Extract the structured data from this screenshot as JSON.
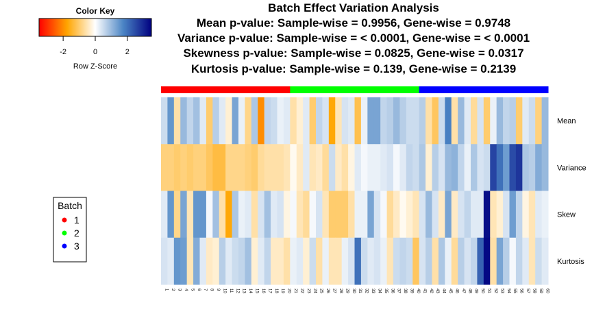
{
  "chart_data": {
    "type": "heatmap",
    "title_lines": [
      "Batch Effect Variation Analysis",
      "Mean p-value: Sample-wise = 0.9956, Gene-wise = 0.9748",
      "Variance p-value: Sample-wise = < 0.0001, Gene-wise = < 0.0001",
      "Skewness p-value: Sample-wise = 0.0825, Gene-wise = 0.0317",
      "Kurtosis p-value: Sample-wise = 0.139, Gene-wise = 0.2139"
    ],
    "color_key": {
      "title": "Color Key",
      "xlabel": "Row Z-Score",
      "ticks": [
        "-2",
        "0",
        "2"
      ],
      "tick_values": [
        -2,
        0,
        2
      ],
      "range": [
        -3.5,
        3.5
      ],
      "colors": [
        "#ff0000",
        "#ffa500",
        "#ffffff",
        "#4a84c4",
        "#000080"
      ]
    },
    "rows": [
      "Mean",
      "Variance",
      "Skew",
      "Kurtosis"
    ],
    "columns": [
      "1",
      "2",
      "3",
      "4",
      "5",
      "6",
      "7",
      "8",
      "9",
      "10",
      "11",
      "12",
      "13",
      "14",
      "15",
      "16",
      "17",
      "18",
      "19",
      "20",
      "21",
      "22",
      "23",
      "24",
      "25",
      "26",
      "27",
      "28",
      "29",
      "30",
      "31",
      "32",
      "33",
      "34",
      "35",
      "36",
      "37",
      "38",
      "39",
      "40",
      "41",
      "42",
      "43",
      "44",
      "45",
      "46",
      "47",
      "48",
      "49",
      "50",
      "51",
      "52",
      "53",
      "54",
      "55",
      "56",
      "57",
      "58",
      "59",
      "60"
    ],
    "column_batches": [
      1,
      1,
      1,
      1,
      1,
      1,
      1,
      1,
      1,
      1,
      1,
      1,
      1,
      1,
      1,
      1,
      1,
      1,
      1,
      1,
      2,
      2,
      2,
      2,
      2,
      2,
      2,
      2,
      2,
      2,
      2,
      2,
      2,
      2,
      2,
      2,
      2,
      2,
      2,
      2,
      3,
      3,
      3,
      3,
      3,
      3,
      3,
      3,
      3,
      3,
      3,
      3,
      3,
      3,
      3,
      3,
      3,
      3,
      3,
      3
    ],
    "batch_colors": {
      "1": "#ff0000",
      "2": "#00ff00",
      "3": "#0000ff"
    },
    "values": [
      [
        0.5,
        1.5,
        -0.6,
        1.0,
        0.6,
        0.9,
        0.3,
        -1.0,
        0.7,
        0.3,
        -0.3,
        1.3,
        0.2,
        -0.8,
        0.8,
        -2.0,
        0.6,
        0.5,
        0.2,
        0.3,
        -0.6,
        -0.3,
        0.3,
        -1.0,
        0.6,
        0.4,
        -1.7,
        -0.5,
        0.4,
        0.3,
        -1.2,
        0.2,
        1.3,
        1.3,
        0.6,
        0.7,
        1.0,
        0.7,
        0.5,
        0.5,
        0.7,
        -0.6,
        -1.1,
        0.5,
        1.8,
        -0.6,
        1.0,
        0.3,
        -0.7,
        0.4,
        -1.0,
        0.2,
        1.0,
        0.6,
        0.7,
        -1.0,
        0.3,
        0.5,
        -0.9,
        1.0
      ],
      [
        -0.9,
        -0.9,
        -1.0,
        -0.9,
        -1.0,
        -0.9,
        -0.9,
        -1.1,
        -1.3,
        -1.3,
        -0.8,
        -0.8,
        -0.8,
        -0.9,
        -1.0,
        -0.7,
        -0.6,
        -0.6,
        -0.6,
        -0.5,
        -0.1,
        -0.4,
        0.3,
        -0.5,
        -0.4,
        -0.7,
        0.5,
        -0.4,
        -0.6,
        -0.2,
        0.3,
        0.1,
        0.2,
        0.2,
        0.3,
        0.4,
        0.1,
        0.3,
        0.6,
        0.5,
        0.8,
        -0.3,
        0.7,
        0.4,
        1.0,
        1.1,
        0.6,
        0.2,
        0.8,
        0.4,
        0.5,
        2.6,
        2.0,
        1.4,
        2.5,
        2.8,
        0.8,
        0.7,
        1.2,
        1.0
      ],
      [
        0.3,
        1.5,
        -0.8,
        1.3,
        -0.5,
        1.5,
        1.5,
        0.1,
        0.9,
        -0.6,
        -1.7,
        0.8,
        0.2,
        0.3,
        -0.6,
        0.4,
        0.9,
        0.3,
        0.4,
        -0.2,
        0.1,
        -0.5,
        -0.7,
        0.1,
        0.4,
        -0.5,
        -1.0,
        -1.0,
        -1.0,
        -0.6,
        0.2,
        0.2,
        1.3,
        0.4,
        0.1,
        -0.7,
        -0.4,
        -0.1,
        -0.3,
        -0.5,
        0.4,
        1.0,
        0.4,
        -0.4,
        1.3,
        -0.4,
        0.4,
        0.6,
        0.3,
        0.3,
        3.3,
        -0.5,
        -0.3,
        0.4,
        1.4,
        0.6,
        -0.2,
        -0.5,
        0.3,
        0.2
      ],
      [
        0.4,
        0.3,
        1.5,
        1.4,
        -0.5,
        1.2,
        0.3,
        -0.4,
        -0.3,
        0.7,
        0.3,
        0.5,
        0.6,
        0.9,
        -0.3,
        0.3,
        0.6,
        -0.4,
        -0.4,
        -0.6,
        0.2,
        0.3,
        -0.3,
        0.5,
        -0.6,
        0.2,
        -0.5,
        -0.5,
        0.2,
        0.4,
        2.0,
        0.5,
        0.3,
        0.4,
        0.2,
        -0.5,
        0.5,
        0.6,
        0.5,
        -1.1,
        0.4,
        0.7,
        -0.6,
        0.8,
        0.2,
        -0.7,
        0.7,
        0.4,
        0.6,
        2.2,
        3.4,
        -0.6,
        1.3,
        0.7,
        0.1,
        0.6,
        0.3,
        -0.5,
        0.5,
        0.3
      ]
    ],
    "legend": {
      "title": "Batch",
      "entries": [
        {
          "label": "1",
          "color": "#ff0000"
        },
        {
          "label": "2",
          "color": "#00ff00"
        },
        {
          "label": "3",
          "color": "#0000ff"
        }
      ]
    }
  }
}
